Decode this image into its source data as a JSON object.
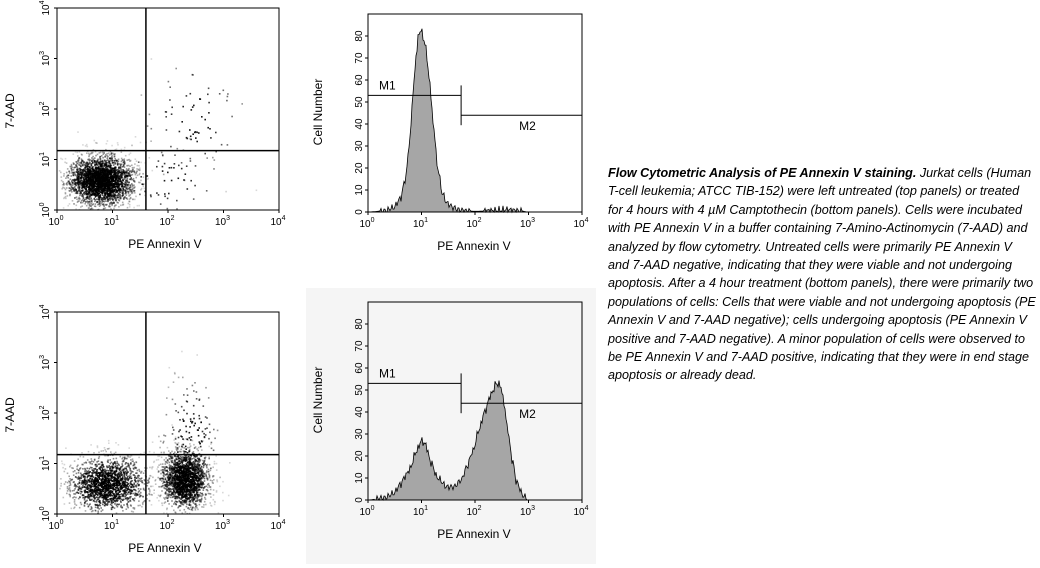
{
  "caption": {
    "title": "Flow Cytometric Analysis of PE Annexin V staining.",
    "body": "Jurkat cells (Human T-cell leukemia; ATCC TIB-152) were left untreated (top panels) or treated for 4 hours with 4 µM Camptothecin (bottom panels). Cells were incubated with PE Annexin V in a buffer containing 7-Amino-Actinomycin (7-AAD) and analyzed by flow cytometry. Untreated cells were primarily PE Annexin V and 7-AAD negative, indicating that they were viable and not undergoing apoptosis. After a 4 hour treatment (bottom panels), there were primarily two populations of cells: Cells that were viable and not undergoing apoptosis (PE Annexin V and 7-AAD negative); cells undergoing apoptosis (PE Annexin V positive and 7-AAD negative). A minor population of cells were observed to be PE Annexin V and 7-AAD positive, indicating that they were in end stage apoptosis or already dead."
  },
  "colors": {
    "ink": "#000000",
    "histogram_fill": "#a6a6a6",
    "panel_bg": "#f5f5f5"
  },
  "chart_data": [
    {
      "id": "dot-untreated",
      "type": "scatter",
      "xlabel": "PE Annexin V",
      "ylabel": "7-AAD",
      "x_scale": "log",
      "y_scale": "log",
      "xlim": [
        1,
        10000
      ],
      "ylim": [
        1,
        10000
      ],
      "x_ticks": [
        {
          "base": "10",
          "exp": "0"
        },
        {
          "base": "10",
          "exp": "1"
        },
        {
          "base": "10",
          "exp": "2"
        },
        {
          "base": "10",
          "exp": "3"
        },
        {
          "base": "10",
          "exp": "4"
        }
      ],
      "y_ticks": [
        {
          "base": "10",
          "exp": "0"
        },
        {
          "base": "10",
          "exp": "1"
        },
        {
          "base": "10",
          "exp": "2"
        },
        {
          "base": "10",
          "exp": "3"
        },
        {
          "base": "10",
          "exp": "4"
        }
      ],
      "quadrant_gate": {
        "x": 40,
        "y": 15
      },
      "populations": [
        {
          "center_x": 6,
          "center_y": 4,
          "spread_x_decades": 0.3,
          "spread_y_decades": 0.25,
          "points": 2600
        },
        {
          "center_x": 300,
          "center_y": 60,
          "spread_x_decades": 0.45,
          "spread_y_decades": 0.6,
          "points": 70
        },
        {
          "center_x": 100,
          "center_y": 4,
          "spread_x_decades": 0.5,
          "spread_y_decades": 0.35,
          "points": 60
        }
      ]
    },
    {
      "id": "hist-untreated",
      "type": "area",
      "xlabel": "PE Annexin V",
      "ylabel": "Cell Number",
      "x_scale": "log",
      "xlim": [
        1,
        10000
      ],
      "ylim": [
        0,
        90
      ],
      "x_ticks": [
        {
          "base": "10",
          "exp": "0"
        },
        {
          "base": "10",
          "exp": "1"
        },
        {
          "base": "10",
          "exp": "2"
        },
        {
          "base": "10",
          "exp": "3"
        },
        {
          "base": "10",
          "exp": "4"
        }
      ],
      "y_ticks": [
        0,
        10,
        20,
        30,
        40,
        50,
        60,
        70,
        80
      ],
      "x": [
        1,
        2,
        3,
        4,
        5,
        6,
        7,
        8,
        9,
        10,
        12,
        14,
        17,
        20,
        25,
        30,
        40,
        50,
        70,
        100,
        200,
        400,
        700,
        1000,
        10000
      ],
      "y": [
        0,
        0.5,
        2,
        6,
        15,
        32,
        55,
        72,
        82,
        82,
        75,
        60,
        38,
        20,
        8,
        4,
        2,
        1,
        0.5,
        0.3,
        0.5,
        1,
        0.5,
        0,
        0
      ],
      "markers": [
        {
          "label": "M1",
          "x_start": 1,
          "x_end": 55,
          "y": 53
        },
        {
          "label": "M2",
          "x_start": 55,
          "x_end": 10000,
          "y": 44
        }
      ]
    },
    {
      "id": "dot-treated",
      "type": "scatter",
      "xlabel": "PE Annexin V",
      "ylabel": "7-AAD",
      "x_scale": "log",
      "y_scale": "log",
      "xlim": [
        1,
        10000
      ],
      "ylim": [
        1,
        10000
      ],
      "x_ticks": [
        {
          "base": "10",
          "exp": "0"
        },
        {
          "base": "10",
          "exp": "1"
        },
        {
          "base": "10",
          "exp": "2"
        },
        {
          "base": "10",
          "exp": "3"
        },
        {
          "base": "10",
          "exp": "4"
        }
      ],
      "y_ticks": [
        {
          "base": "10",
          "exp": "0"
        },
        {
          "base": "10",
          "exp": "1"
        },
        {
          "base": "10",
          "exp": "2"
        },
        {
          "base": "10",
          "exp": "3"
        },
        {
          "base": "10",
          "exp": "4"
        }
      ],
      "quadrant_gate": {
        "x": 40,
        "y": 15
      },
      "populations": [
        {
          "center_x": 8,
          "center_y": 4,
          "spread_x_decades": 0.35,
          "spread_y_decades": 0.28,
          "points": 1600
        },
        {
          "center_x": 200,
          "center_y": 5,
          "spread_x_decades": 0.22,
          "spread_y_decades": 0.3,
          "points": 1700
        },
        {
          "center_x": 250,
          "center_y": 40,
          "spread_x_decades": 0.25,
          "spread_y_decades": 0.55,
          "points": 160
        }
      ]
    },
    {
      "id": "hist-treated",
      "type": "area",
      "xlabel": "PE Annexin V",
      "ylabel": "Cell Number",
      "x_scale": "log",
      "xlim": [
        1,
        10000
      ],
      "ylim": [
        0,
        90
      ],
      "x_ticks": [
        {
          "base": "10",
          "exp": "0"
        },
        {
          "base": "10",
          "exp": "1"
        },
        {
          "base": "10",
          "exp": "2"
        },
        {
          "base": "10",
          "exp": "3"
        },
        {
          "base": "10",
          "exp": "4"
        }
      ],
      "y_ticks": [
        0,
        10,
        20,
        30,
        40,
        50,
        60,
        70,
        80
      ],
      "x": [
        1,
        2,
        3,
        4,
        5,
        6,
        8,
        10,
        12,
        15,
        20,
        30,
        40,
        55,
        70,
        90,
        120,
        150,
        200,
        250,
        300,
        350,
        400,
        500,
        600,
        800,
        1000,
        10000
      ],
      "y": [
        0,
        1,
        3,
        7,
        11,
        14,
        22,
        27,
        25,
        17,
        10,
        6,
        6,
        9,
        15,
        22,
        32,
        40,
        48,
        53,
        52,
        44,
        33,
        18,
        8,
        2,
        0,
        0
      ],
      "markers": [
        {
          "label": "M1",
          "x_start": 1,
          "x_end": 55,
          "y": 53
        },
        {
          "label": "M2",
          "x_start": 55,
          "x_end": 10000,
          "y": 44
        }
      ]
    }
  ]
}
